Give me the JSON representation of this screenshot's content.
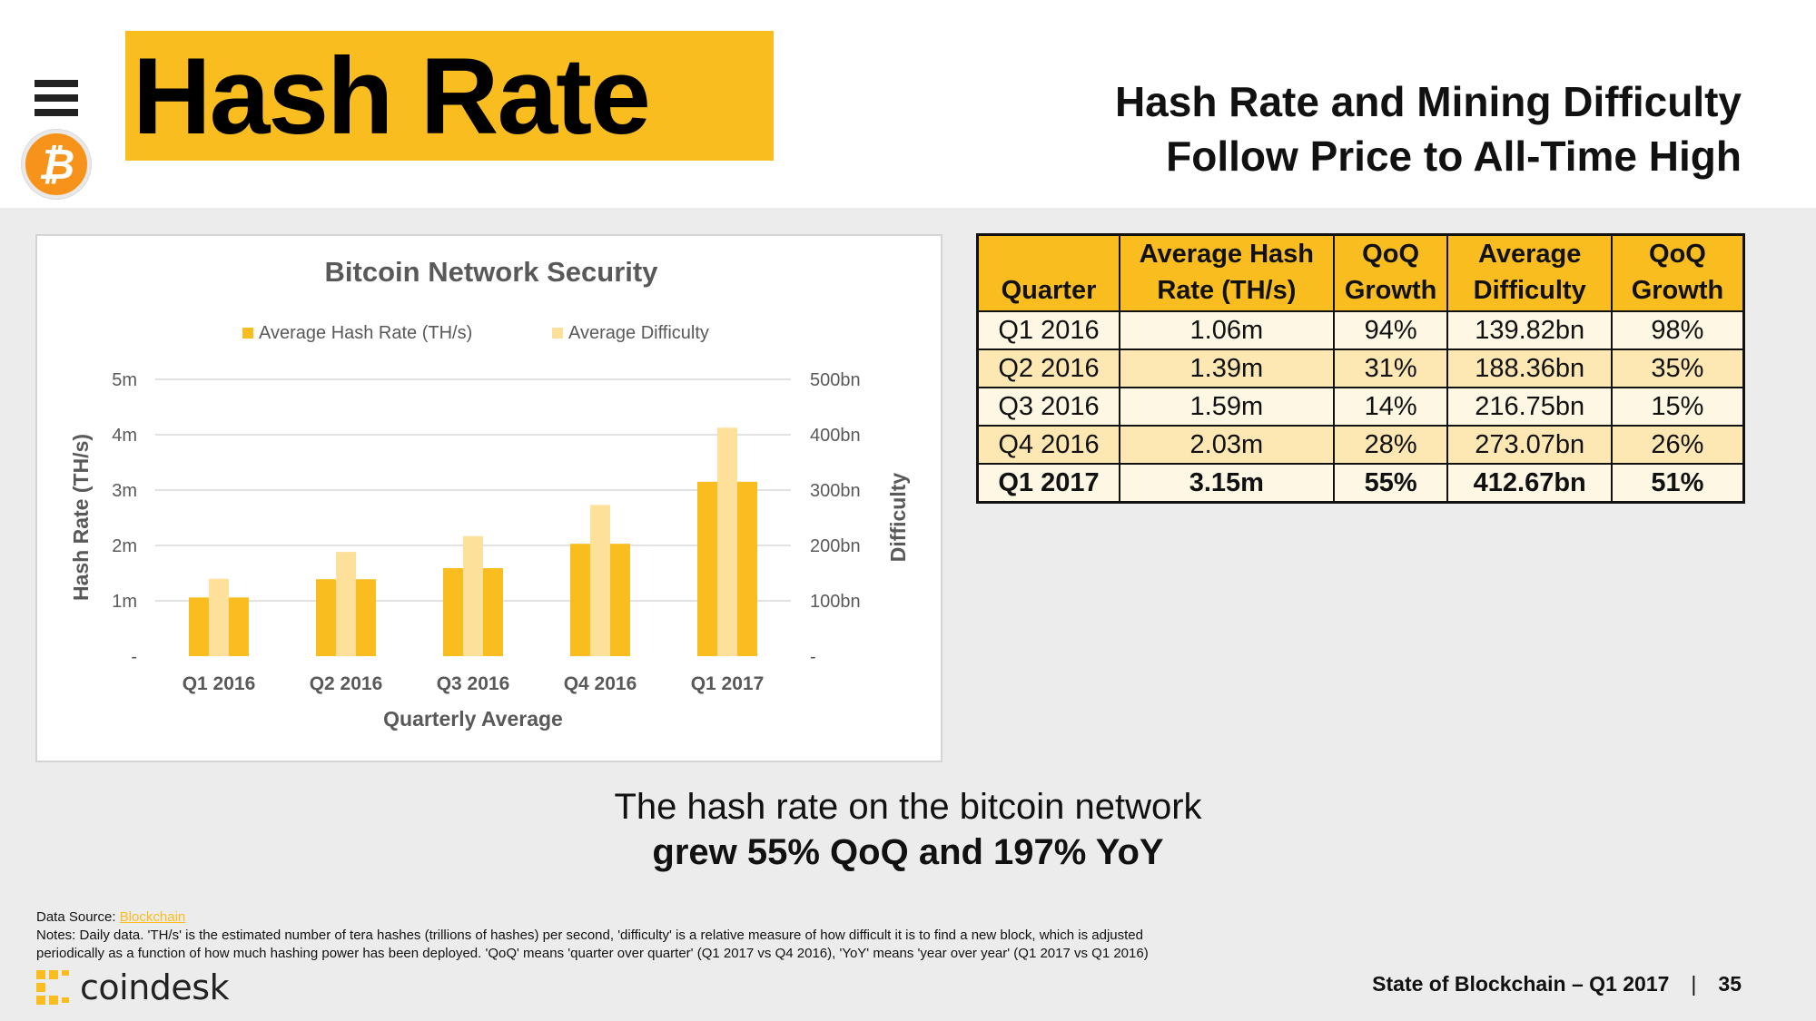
{
  "header": {
    "menu_icon": "hamburger-menu-icon",
    "coin_icon": "bitcoin-icon",
    "coin_symbol": "₿",
    "title": "Hash Rate",
    "subtitle_line1": "Hash Rate and Mining Difficulty",
    "subtitle_line2": "Follow Price to All-Time High",
    "accent_color": "#f9bd20"
  },
  "chart_data": {
    "type": "bar",
    "title": "Bitcoin Network Security",
    "categories": [
      "Q1 2016",
      "Q2 2016",
      "Q3 2016",
      "Q4 2016",
      "Q1 2017"
    ],
    "series": [
      {
        "name": "Average Hash Rate (TH/s)",
        "axis": "left",
        "color": "#f9bd20",
        "values": [
          1.06,
          1.39,
          1.59,
          2.03,
          3.15
        ]
      },
      {
        "name": "Average Difficulty",
        "axis": "right",
        "color": "#fde09a",
        "values": [
          139.82,
          188.36,
          216.75,
          273.07,
          412.67
        ]
      }
    ],
    "xlabel": "Quarterly Average",
    "ylabel": "Hash Rate (TH/s)",
    "y2label": "Difficulty",
    "ylim": [
      0,
      5
    ],
    "y2lim": [
      0,
      500
    ],
    "yticks": [
      "-",
      "1m",
      "2m",
      "3m",
      "4m",
      "5m"
    ],
    "y2ticks": [
      "-",
      "100bn",
      "200bn",
      "300bn",
      "400bn",
      "500bn"
    ],
    "grid": true,
    "legend_position": "top"
  },
  "table": {
    "headers": [
      [
        "",
        "Quarter"
      ],
      [
        "Average Hash",
        "Rate (TH/s)"
      ],
      [
        "QoQ",
        "Growth"
      ],
      [
        "Average",
        "Difficulty"
      ],
      [
        "QoQ",
        "Growth"
      ]
    ],
    "rows": [
      [
        "Q1 2016",
        "1.06m",
        "94%",
        "139.82bn",
        "98%"
      ],
      [
        "Q2 2016",
        "1.39m",
        "31%",
        "188.36bn",
        "35%"
      ],
      [
        "Q3 2016",
        "1.59m",
        "14%",
        "216.75bn",
        "15%"
      ],
      [
        "Q4 2016",
        "2.03m",
        "28%",
        "273.07bn",
        "26%"
      ],
      [
        "Q1 2017",
        "3.15m",
        "55%",
        "412.67bn",
        "51%"
      ]
    ]
  },
  "takeaway": {
    "line1": "The hash rate on the bitcoin network",
    "line2": "grew 55% QoQ and 197% YoY"
  },
  "footnotes": {
    "source_label": "Data Source: ",
    "source_link": "Blockchain",
    "notes_line1": "Notes: Daily data. 'TH/s' is the estimated number of tera hashes (trillions of hashes) per second, 'difficulty' is a relative measure of how difficult it is to find a new block, which is adjusted",
    "notes_line2": "periodically as a function of how much hashing power has been deployed. 'QoQ' means 'quarter over quarter' (Q1 2017 vs Q4 2016), 'YoY' means 'year over year' (Q1 2017 vs Q1 2016)"
  },
  "footer": {
    "logo_text": "coindesk",
    "report_name": "State of Blockchain – Q1 2017",
    "separator": "|",
    "page_number": "35"
  }
}
